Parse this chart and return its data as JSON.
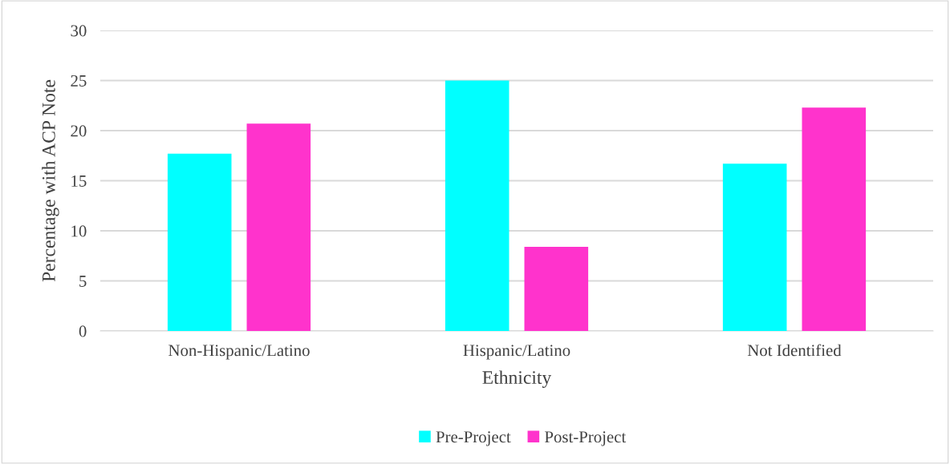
{
  "chart_data": {
    "type": "bar",
    "xlabel": "Ethnicity",
    "ylabel": "Percentage with ACP Note",
    "categories": [
      "Non-Hispanic/Latino",
      "Hispanic/Latino",
      "Not Identified"
    ],
    "series": [
      {
        "name": "Pre-Project",
        "color": "#00ffff",
        "values": [
          17.7,
          25.0,
          16.7
        ]
      },
      {
        "name": "Post-Project",
        "color": "#ff33cc",
        "values": [
          20.7,
          8.4,
          22.3
        ]
      }
    ],
    "ylim": [
      0,
      30
    ],
    "yticks": [
      0,
      5,
      10,
      15,
      20,
      25,
      30
    ],
    "grid": "y",
    "legend": "bottom"
  }
}
